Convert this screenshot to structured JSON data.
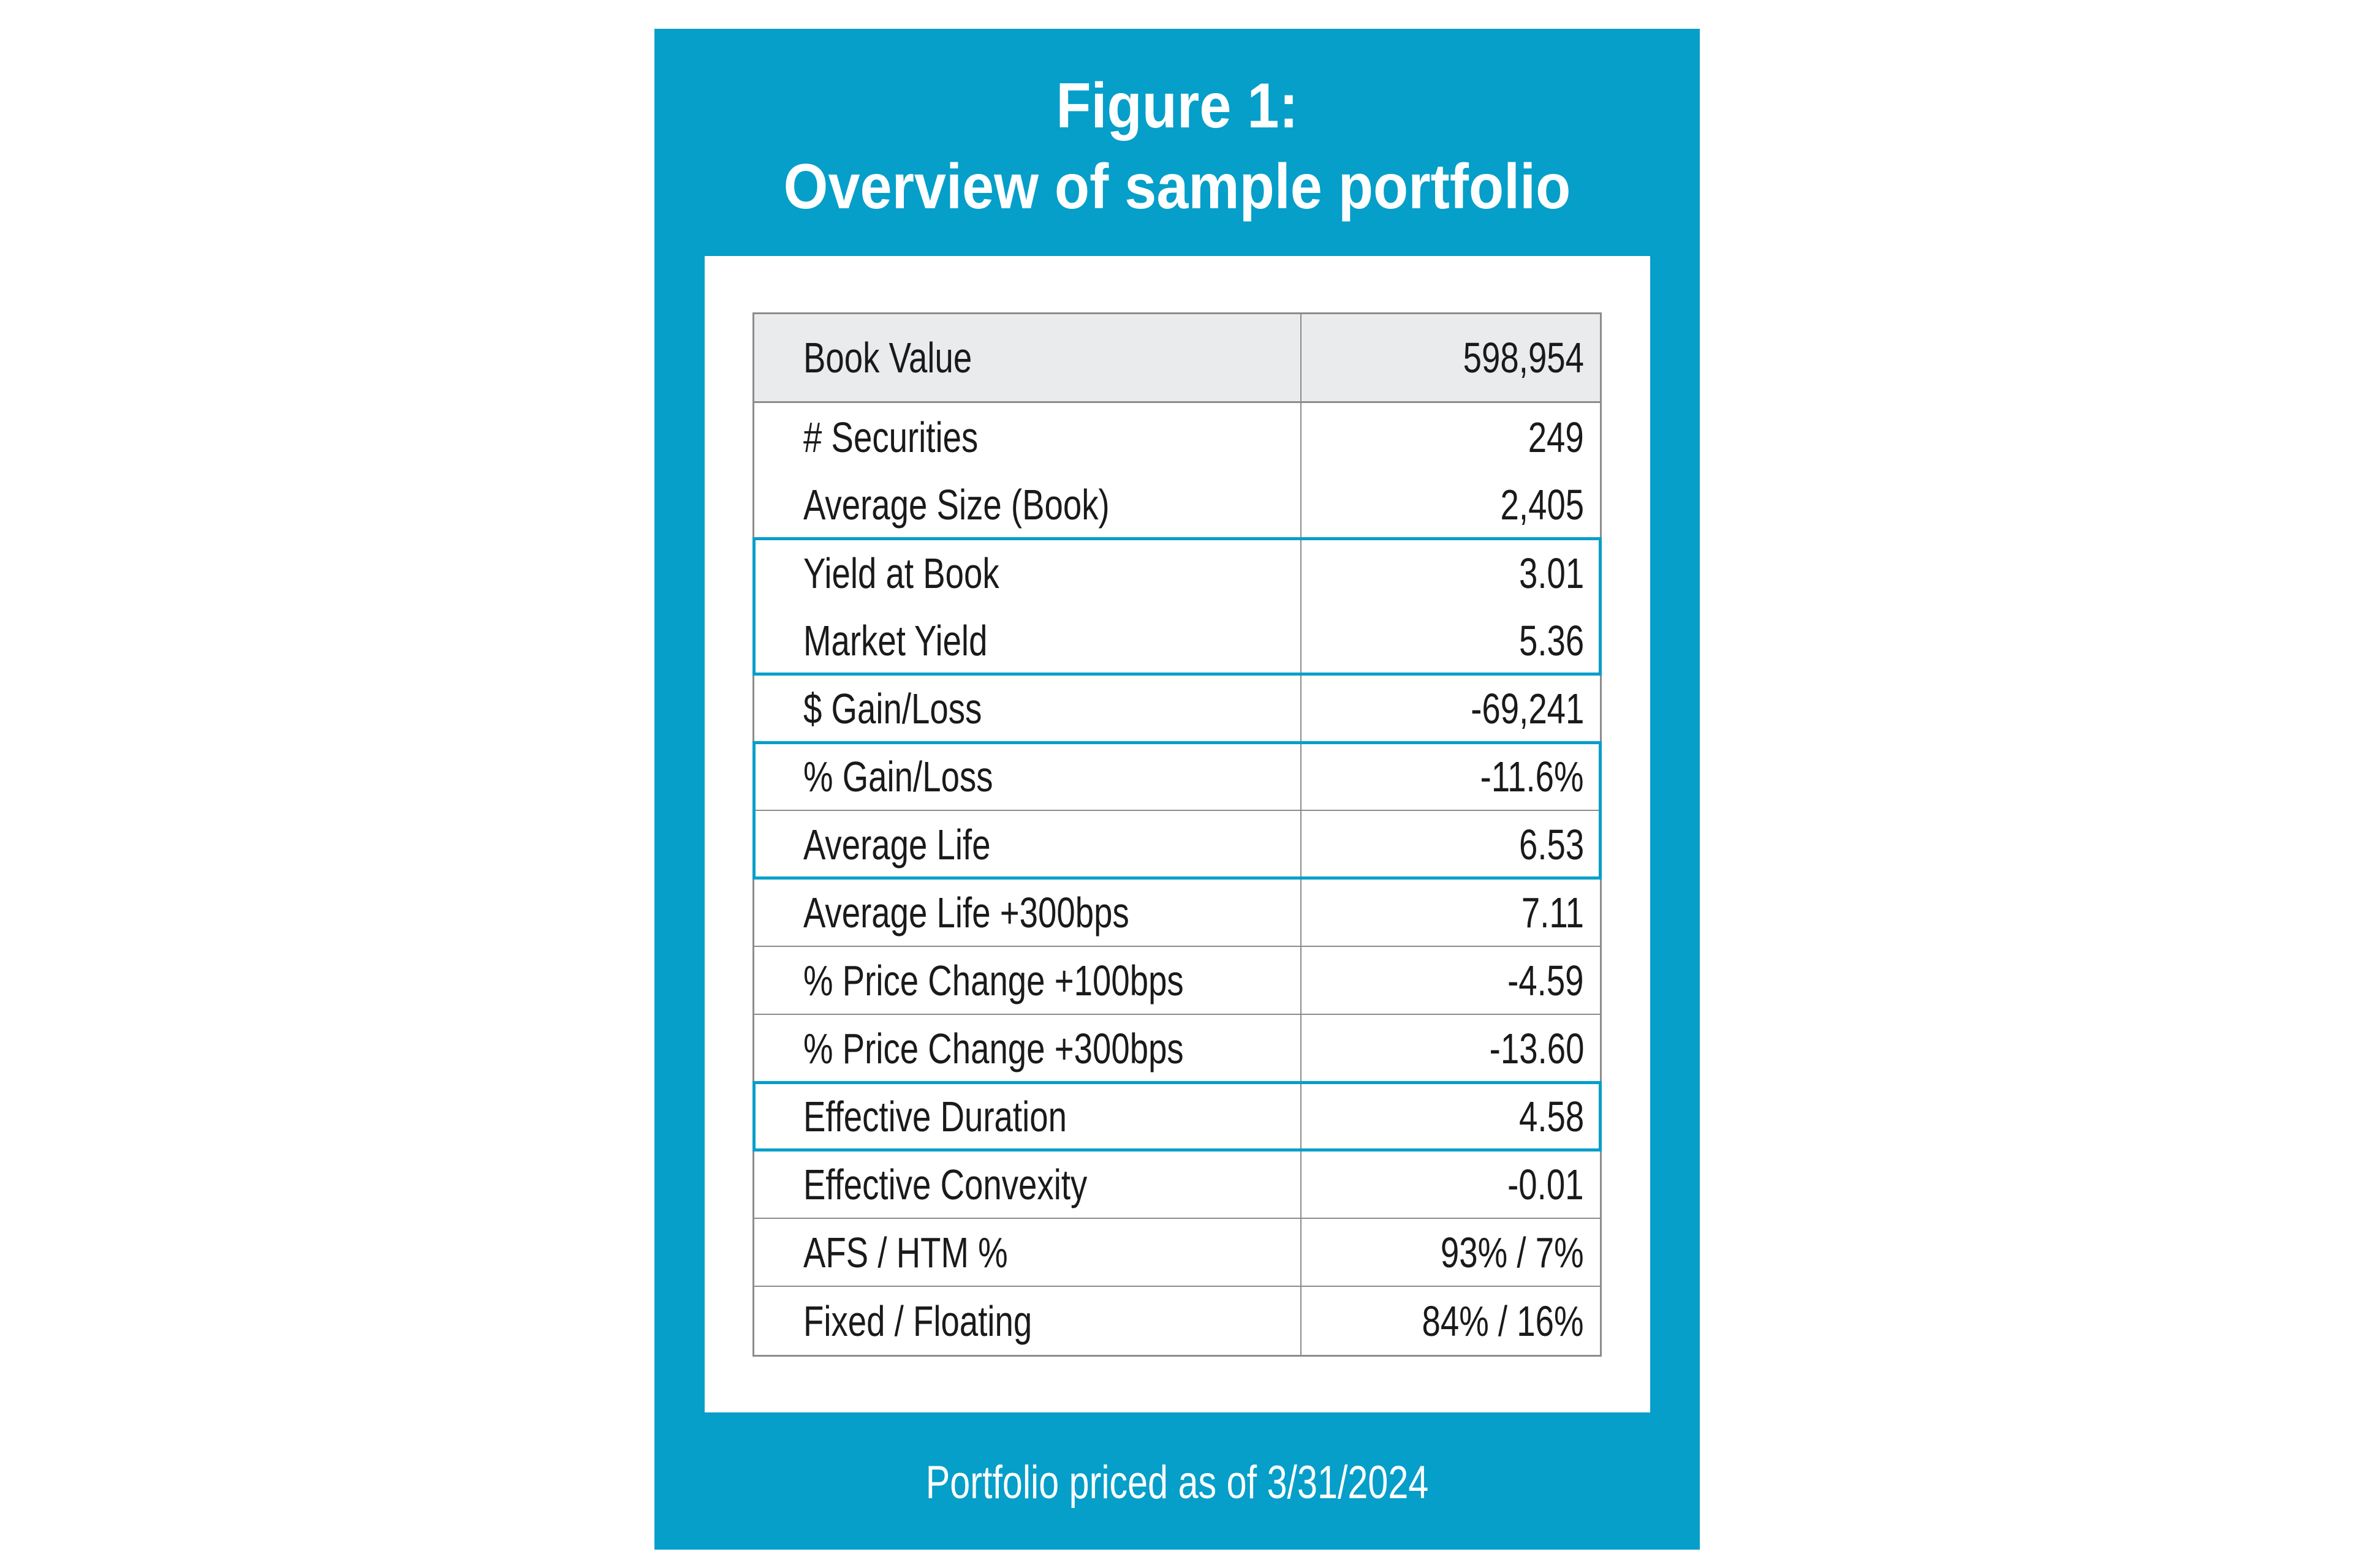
{
  "colors": {
    "panel": "#059fc9",
    "highlight": "#059fc9",
    "header_bg": "#e9ebed"
  },
  "title": {
    "line1": "Figure 1:",
    "line2": "Overview of sample portfolio"
  },
  "table": {
    "header": {
      "label": "Book Value",
      "value": "598,954"
    },
    "rows": [
      {
        "label": "# Securities",
        "value": "249",
        "divider": false,
        "highlight": false
      },
      {
        "label": "Average Size (Book)",
        "value": "2,405",
        "divider": true,
        "highlight": false
      },
      {
        "label": "Yield at Book",
        "value": "3.01",
        "divider": false,
        "highlight": true
      },
      {
        "label": "Market Yield",
        "value": "5.36",
        "divider": true,
        "highlight": true
      },
      {
        "label": "$ Gain/Loss",
        "value": "-69,241",
        "divider": true,
        "highlight": false
      },
      {
        "label": "% Gain/Loss",
        "value": "-11.6%",
        "divider": true,
        "highlight": true
      },
      {
        "label": "Average Life",
        "value": "6.53",
        "divider": true,
        "highlight": true
      },
      {
        "label": "Average Life +300bps",
        "value": "7.11",
        "divider": true,
        "highlight": false
      },
      {
        "label": "% Price Change +100bps",
        "value": "-4.59",
        "divider": true,
        "highlight": false
      },
      {
        "label": "% Price Change +300bps",
        "value": "-13.60",
        "divider": true,
        "highlight": false
      },
      {
        "label": "Effective Duration",
        "value": "4.58",
        "divider": true,
        "highlight": true
      },
      {
        "label": "Effective Convexity",
        "value": "-0.01",
        "divider": true,
        "highlight": false
      },
      {
        "label": "AFS / HTM %",
        "value": "93% / 7%",
        "divider": true,
        "highlight": false
      },
      {
        "label": "Fixed / Floating",
        "value": "84% / 16%",
        "divider": false,
        "highlight": false
      }
    ]
  },
  "footer": "Portfolio priced as of 3/31/2024"
}
